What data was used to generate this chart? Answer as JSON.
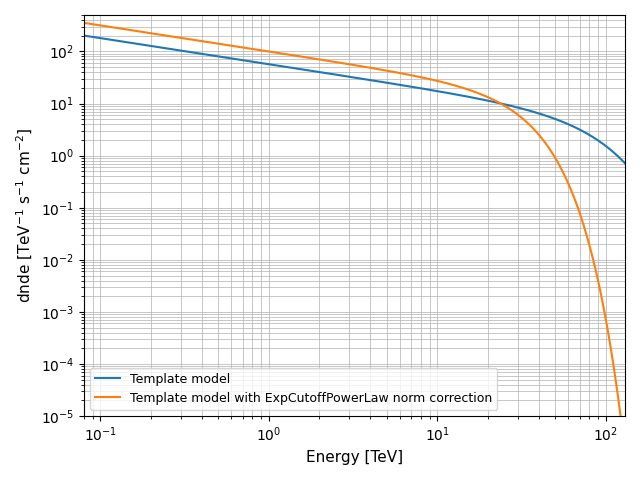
{
  "title": "",
  "xlabel": "Energy [TeV]",
  "ylabel": "dnde [TeV$^{-1}$ s$^{-1}$ cm$^{-2}$]",
  "xlim": [
    0.08,
    130
  ],
  "ylim": [
    1e-05,
    500.0
  ],
  "line1_label": "Template model",
  "line1_color": "#1f77b4",
  "line2_label": "Template model with ExpCutoffPowerLaw norm correction",
  "line2_color": "#ff7f0e",
  "line1_amplitude": 57,
  "line1_index": -0.5,
  "line1_reference": 1.0,
  "line1_lambda": 0.012,
  "line1_alpha": 1.5,
  "line2_amplitude": 100,
  "line2_index": -0.5,
  "line2_reference": 1.0,
  "line2_lambda": 0.035,
  "line2_alpha": 1.8
}
